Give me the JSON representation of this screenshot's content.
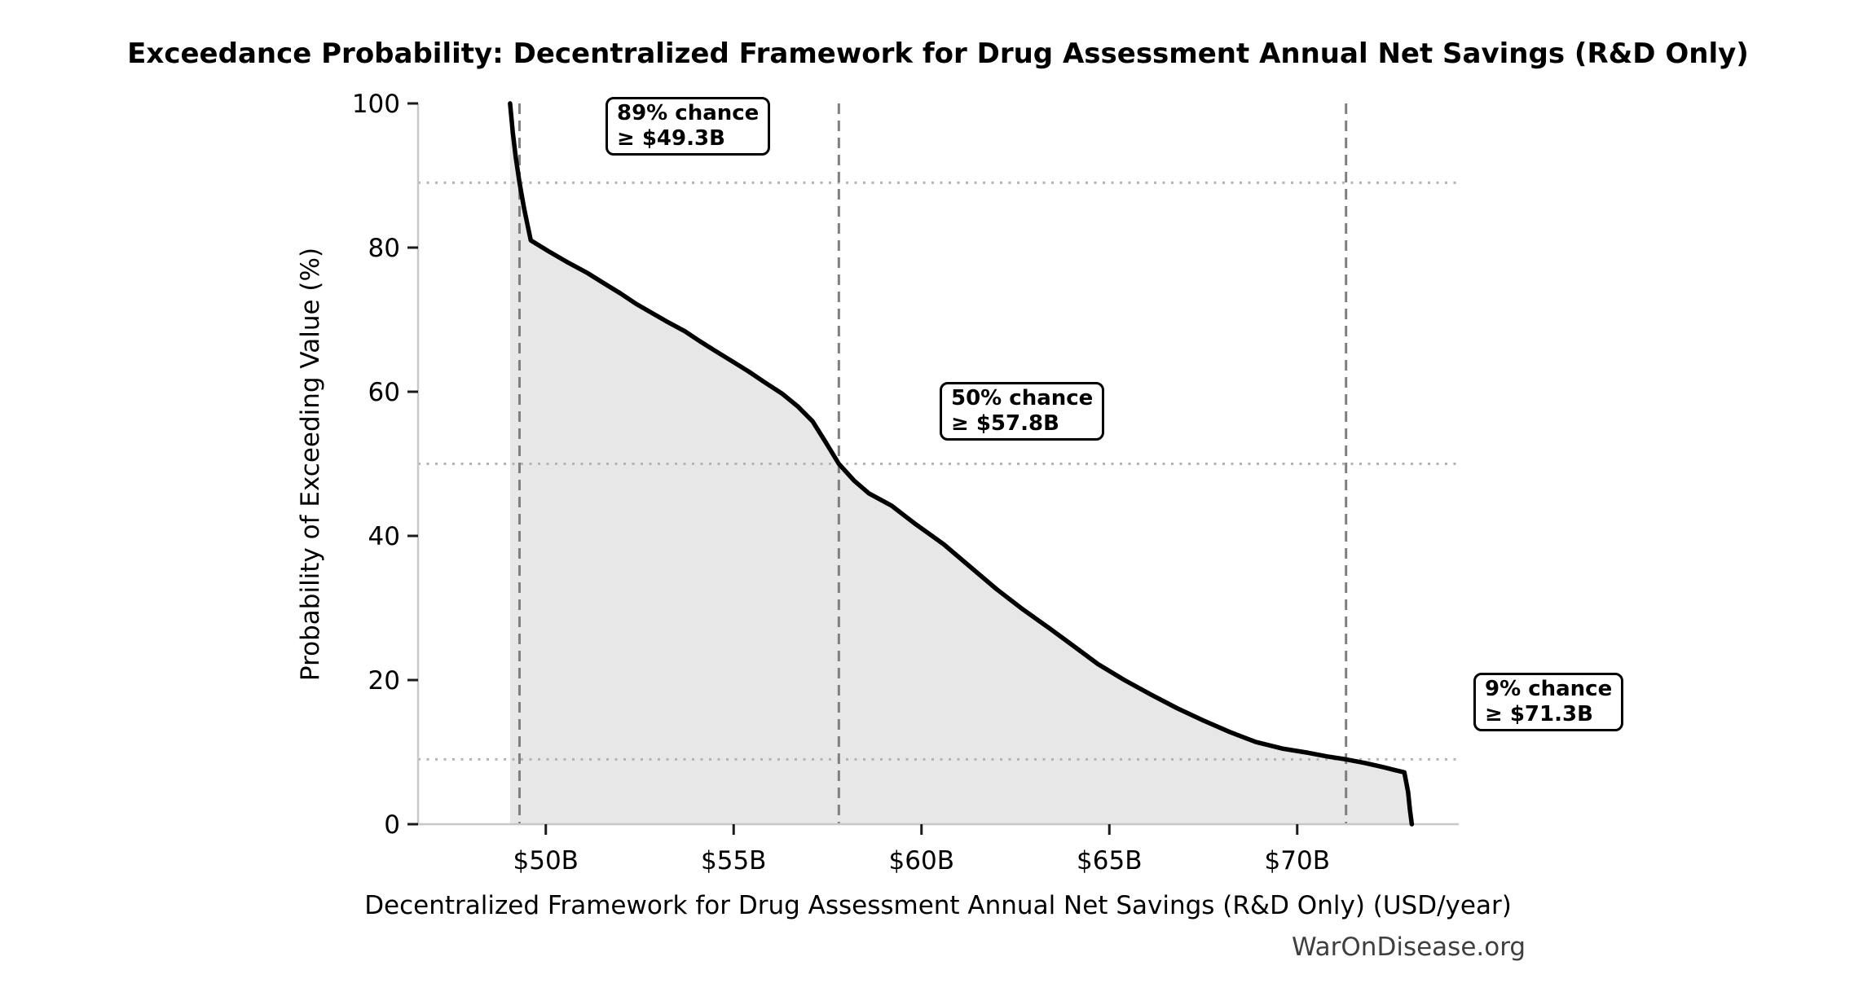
{
  "chart_data": {
    "type": "line",
    "title": "Exceedance Probability: Decentralized Framework for Drug Assessment Annual Net Savings (R&D Only)",
    "xlabel": "Decentralized Framework for Drug Assessment Annual Net Savings (R&D Only) (USD/year)",
    "ylabel": "Probability of Exceeding Value (%)",
    "watermark": "WarOnDisease.org",
    "x_unit": "USD billions per year",
    "xlim": [
      46.6,
      74.3
    ],
    "ylim": [
      0,
      100
    ],
    "grid": false,
    "legend_position": "none",
    "x_ticks": [
      {
        "value": 50,
        "label": "$50B"
      },
      {
        "value": 55,
        "label": "$55B"
      },
      {
        "value": 60,
        "label": "$60B"
      },
      {
        "value": 65,
        "label": "$65B"
      },
      {
        "value": 70,
        "label": "$70B"
      }
    ],
    "y_ticks": [
      {
        "value": 0,
        "label": "0"
      },
      {
        "value": 20,
        "label": "20"
      },
      {
        "value": 40,
        "label": "40"
      },
      {
        "value": 60,
        "label": "60"
      },
      {
        "value": 80,
        "label": "80"
      },
      {
        "value": 100,
        "label": "100"
      }
    ],
    "colors": {
      "curve": "#000000",
      "area_fill": "#e7e7e7",
      "dashed_guide": "#7f7f7f",
      "dotted_guide": "#b3b3b3",
      "spine": "#c8c8c8",
      "tick": "#1a1a1a",
      "watermark_text": "#3f3f3f"
    },
    "reference_points": [
      {
        "probability_pct": 89,
        "value_billion": 49.3,
        "label_line1": "89% chance",
        "label_line2": "≥ $49.3B"
      },
      {
        "probability_pct": 50,
        "value_billion": 57.8,
        "label_line1": "50% chance",
        "label_line2": "≥ $57.8B"
      },
      {
        "probability_pct": 9,
        "value_billion": 71.3,
        "label_line1": "9% chance",
        "label_line2": "≥ $71.3B"
      }
    ],
    "series": [
      {
        "name": "Exceedance probability curve",
        "x_unit": "USD billions/year",
        "y_unit": "percent",
        "points": [
          [
            49.05,
            100
          ],
          [
            49.12,
            96
          ],
          [
            49.2,
            92.5
          ],
          [
            49.3,
            89
          ],
          [
            49.42,
            85.5
          ],
          [
            49.52,
            83
          ],
          [
            49.6,
            81
          ],
          [
            50.1,
            79.4
          ],
          [
            50.6,
            77.9
          ],
          [
            51.1,
            76.5
          ],
          [
            51.5,
            75.2
          ],
          [
            52.0,
            73.6
          ],
          [
            52.4,
            72.2
          ],
          [
            52.8,
            71.0
          ],
          [
            53.2,
            69.8
          ],
          [
            53.7,
            68.4
          ],
          [
            54.1,
            67.0
          ],
          [
            54.5,
            65.7
          ],
          [
            55.0,
            64.1
          ],
          [
            55.4,
            62.8
          ],
          [
            55.8,
            61.4
          ],
          [
            56.3,
            59.7
          ],
          [
            56.7,
            58.0
          ],
          [
            57.1,
            55.9
          ],
          [
            57.45,
            53.0
          ],
          [
            57.8,
            50.0
          ],
          [
            58.2,
            47.7
          ],
          [
            58.6,
            45.9
          ],
          [
            59.2,
            44.2
          ],
          [
            59.8,
            41.8
          ],
          [
            60.6,
            38.8
          ],
          [
            61.3,
            35.7
          ],
          [
            62.0,
            32.6
          ],
          [
            62.7,
            29.8
          ],
          [
            63.4,
            27.2
          ],
          [
            64.0,
            24.9
          ],
          [
            64.7,
            22.2
          ],
          [
            65.4,
            20.0
          ],
          [
            66.1,
            18.0
          ],
          [
            66.8,
            16.1
          ],
          [
            67.5,
            14.4
          ],
          [
            68.2,
            12.8
          ],
          [
            68.9,
            11.4
          ],
          [
            69.6,
            10.5
          ],
          [
            70.3,
            9.9
          ],
          [
            70.8,
            9.4
          ],
          [
            71.3,
            9.0
          ],
          [
            71.8,
            8.5
          ],
          [
            72.3,
            7.9
          ],
          [
            72.6,
            7.5
          ],
          [
            72.85,
            7.2
          ],
          [
            72.95,
            4.5
          ],
          [
            73.0,
            2.0
          ],
          [
            73.05,
            0
          ]
        ]
      }
    ]
  }
}
